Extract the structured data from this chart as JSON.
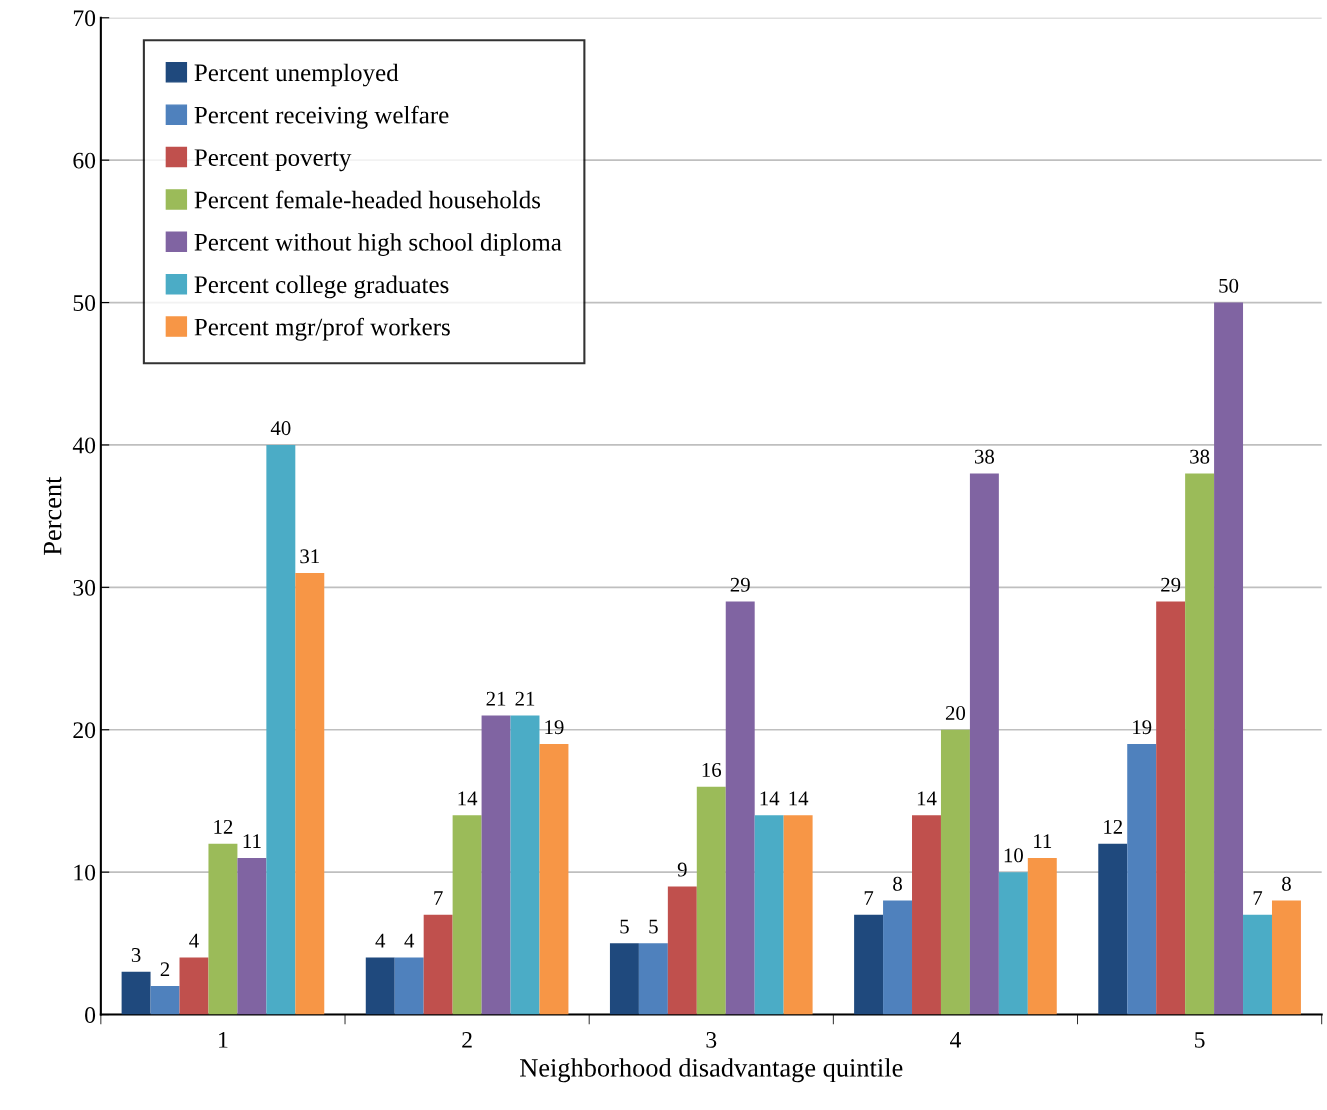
{
  "chart_data": {
    "type": "bar",
    "xlabel": "Neighborhood disadvantage quintile",
    "ylabel": "Percent",
    "categories": [
      "1",
      "2",
      "3",
      "4",
      "5"
    ],
    "series": [
      {
        "name": "Percent unemployed",
        "color": "#1f497d",
        "values": [
          3,
          4,
          5,
          7,
          12
        ]
      },
      {
        "name": "Percent receiving welfare",
        "color": "#4f81bd",
        "values": [
          2,
          4,
          5,
          8,
          19
        ]
      },
      {
        "name": "Percent poverty",
        "color": "#c0504d",
        "values": [
          4,
          7,
          9,
          14,
          29
        ]
      },
      {
        "name": "Percent female-headed households",
        "color": "#9bbb59",
        "values": [
          12,
          14,
          16,
          20,
          38
        ]
      },
      {
        "name": "Percent without high school diploma",
        "color": "#8064a2",
        "values": [
          11,
          21,
          29,
          38,
          50
        ]
      },
      {
        "name": "Percent college graduates",
        "color": "#4bacc6",
        "values": [
          40,
          21,
          14,
          10,
          7
        ]
      },
      {
        "name": "Percent mgr/prof workers",
        "color": "#f79646",
        "values": [
          31,
          19,
          14,
          11,
          8
        ]
      }
    ],
    "ylim": [
      0,
      70
    ],
    "yticks": [
      0,
      10,
      20,
      30,
      40,
      50,
      60,
      70
    ],
    "grid": "y",
    "legend": "top left",
    "data_labels": true
  }
}
